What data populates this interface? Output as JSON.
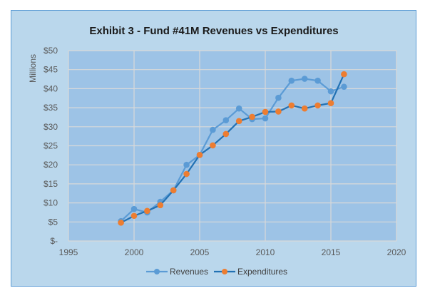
{
  "chart_data": {
    "type": "line",
    "title": "Exhibit 3 - Fund #41M Revenues vs Expenditures",
    "xlabel": "",
    "ylabel": "Millions",
    "xlim": [
      1995,
      2020
    ],
    "ylim": [
      0,
      50
    ],
    "x_ticks": [
      1995,
      2000,
      2005,
      2010,
      2015,
      2020
    ],
    "x_tick_labels": [
      "1995",
      "2000",
      "2005",
      "2010",
      "2015",
      "2020"
    ],
    "y_ticks": [
      0,
      5,
      10,
      15,
      20,
      25,
      30,
      35,
      40,
      45,
      50
    ],
    "y_tick_labels": [
      "$-",
      "$5",
      "$10",
      "$15",
      "$20",
      "$25",
      "$30",
      "$35",
      "$40",
      "$45",
      "$50"
    ],
    "grid": true,
    "legend_position": "bottom",
    "x": [
      1999,
      2000,
      2001,
      2002,
      2003,
      2004,
      2005,
      2006,
      2007,
      2008,
      2009,
      2010,
      2011,
      2012,
      2013,
      2014,
      2015,
      2016
    ],
    "series": [
      {
        "name": "Revenues",
        "color": "#5b9bd5",
        "line_color": "#5b9bd5",
        "values": [
          5.2,
          8.4,
          7.5,
          10.3,
          13.3,
          20.0,
          22.6,
          29.2,
          31.7,
          34.8,
          32.0,
          32.2,
          37.6,
          42.1,
          42.6,
          42.1,
          39.3,
          40.5
        ]
      },
      {
        "name": "Expenditures",
        "color": "#ed7d31",
        "line_color": "#2271b3",
        "values": [
          4.8,
          6.6,
          7.9,
          9.4,
          13.3,
          17.6,
          22.6,
          25.1,
          28.1,
          31.5,
          32.6,
          33.9,
          34.0,
          35.6,
          34.8,
          35.6,
          36.2,
          43.8
        ]
      }
    ]
  },
  "colors": {
    "frame_background": "#bad7ec",
    "plot_background": "#9dc3e6",
    "frame_border": "#5b9bd5",
    "gridline": "#d9d9d9"
  }
}
